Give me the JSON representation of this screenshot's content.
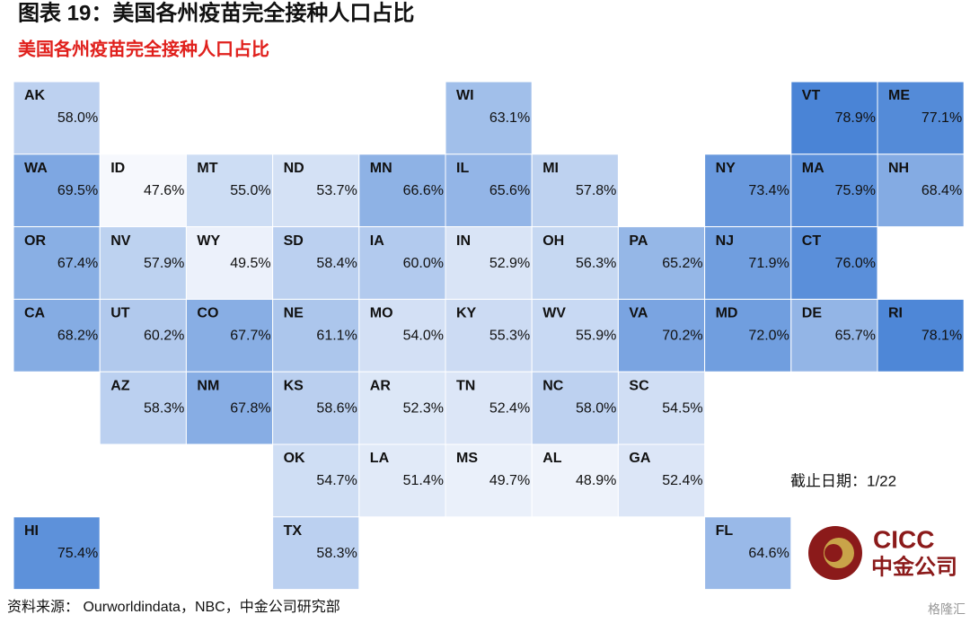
{
  "header": {
    "title": "图表 19：美国各州疫苗完全接种人口占比",
    "subtitle": "美国各州疫苗完全接种人口占比"
  },
  "map": {
    "color_low": "#f6f8fd",
    "color_high": "#4a84d6",
    "tiles": [
      {
        "state": "AK",
        "value": 58.0,
        "value_label": "58.0%"
      },
      {
        "state": "WI",
        "value": 63.1,
        "value_label": "63.1%"
      },
      {
        "state": "VT",
        "value": 78.9,
        "value_label": "78.9%"
      },
      {
        "state": "ME",
        "value": 77.1,
        "value_label": "77.1%"
      },
      {
        "state": "WA",
        "value": 69.5,
        "value_label": "69.5%"
      },
      {
        "state": "ID",
        "value": 47.6,
        "value_label": "47.6%"
      },
      {
        "state": "MT",
        "value": 55.0,
        "value_label": "55.0%"
      },
      {
        "state": "ND",
        "value": 53.7,
        "value_label": "53.7%"
      },
      {
        "state": "MN",
        "value": 66.6,
        "value_label": "66.6%"
      },
      {
        "state": "IL",
        "value": 65.6,
        "value_label": "65.6%"
      },
      {
        "state": "MI",
        "value": 57.8,
        "value_label": "57.8%"
      },
      {
        "state": "NY",
        "value": 73.4,
        "value_label": "73.4%"
      },
      {
        "state": "MA",
        "value": 75.9,
        "value_label": "75.9%"
      },
      {
        "state": "NH",
        "value": 68.4,
        "value_label": "68.4%"
      },
      {
        "state": "OR",
        "value": 67.4,
        "value_label": "67.4%"
      },
      {
        "state": "NV",
        "value": 57.9,
        "value_label": "57.9%"
      },
      {
        "state": "WY",
        "value": 49.5,
        "value_label": "49.5%"
      },
      {
        "state": "SD",
        "value": 58.4,
        "value_label": "58.4%"
      },
      {
        "state": "IA",
        "value": 60.0,
        "value_label": "60.0%"
      },
      {
        "state": "IN",
        "value": 52.9,
        "value_label": "52.9%"
      },
      {
        "state": "OH",
        "value": 56.3,
        "value_label": "56.3%"
      },
      {
        "state": "PA",
        "value": 65.2,
        "value_label": "65.2%"
      },
      {
        "state": "NJ",
        "value": 71.9,
        "value_label": "71.9%"
      },
      {
        "state": "CT",
        "value": 76.0,
        "value_label": "76.0%"
      },
      {
        "state": "CA",
        "value": 68.2,
        "value_label": "68.2%"
      },
      {
        "state": "UT",
        "value": 60.2,
        "value_label": "60.2%"
      },
      {
        "state": "CO",
        "value": 67.7,
        "value_label": "67.7%"
      },
      {
        "state": "NE",
        "value": 61.1,
        "value_label": "61.1%"
      },
      {
        "state": "MO",
        "value": 54.0,
        "value_label": "54.0%"
      },
      {
        "state": "KY",
        "value": 55.3,
        "value_label": "55.3%"
      },
      {
        "state": "WV",
        "value": 55.9,
        "value_label": "55.9%"
      },
      {
        "state": "VA",
        "value": 70.2,
        "value_label": "70.2%"
      },
      {
        "state": "MD",
        "value": 72.0,
        "value_label": "72.0%"
      },
      {
        "state": "DE",
        "value": 65.7,
        "value_label": "65.7%"
      },
      {
        "state": "RI",
        "value": 78.1,
        "value_label": "78.1%"
      },
      {
        "state": "AZ",
        "value": 58.3,
        "value_label": "58.3%"
      },
      {
        "state": "NM",
        "value": 67.8,
        "value_label": "67.8%"
      },
      {
        "state": "KS",
        "value": 58.6,
        "value_label": "58.6%"
      },
      {
        "state": "AR",
        "value": 52.3,
        "value_label": "52.3%"
      },
      {
        "state": "TN",
        "value": 52.4,
        "value_label": "52.4%"
      },
      {
        "state": "NC",
        "value": 58.0,
        "value_label": "58.0%"
      },
      {
        "state": "SC",
        "value": 54.5,
        "value_label": "54.5%"
      },
      {
        "state": "OK",
        "value": 54.7,
        "value_label": "54.7%"
      },
      {
        "state": "LA",
        "value": 51.4,
        "value_label": "51.4%"
      },
      {
        "state": "MS",
        "value": 49.7,
        "value_label": "49.7%"
      },
      {
        "state": "AL",
        "value": 48.9,
        "value_label": "48.9%"
      },
      {
        "state": "GA",
        "value": 52.4,
        "value_label": "52.4%"
      },
      {
        "state": "HI",
        "value": 75.4,
        "value_label": "75.4%"
      },
      {
        "state": "TX",
        "value": 58.3,
        "value_label": "58.3%"
      },
      {
        "state": "FL",
        "value": 64.6,
        "value_label": "64.6%"
      }
    ]
  },
  "note": "截止日期：1/22",
  "source": "资料来源：   Ourworldindata，NBC，中金公司研究部",
  "logo": {
    "brand": "CICC",
    "name": "中金公司"
  },
  "watermark": "格隆汇"
}
